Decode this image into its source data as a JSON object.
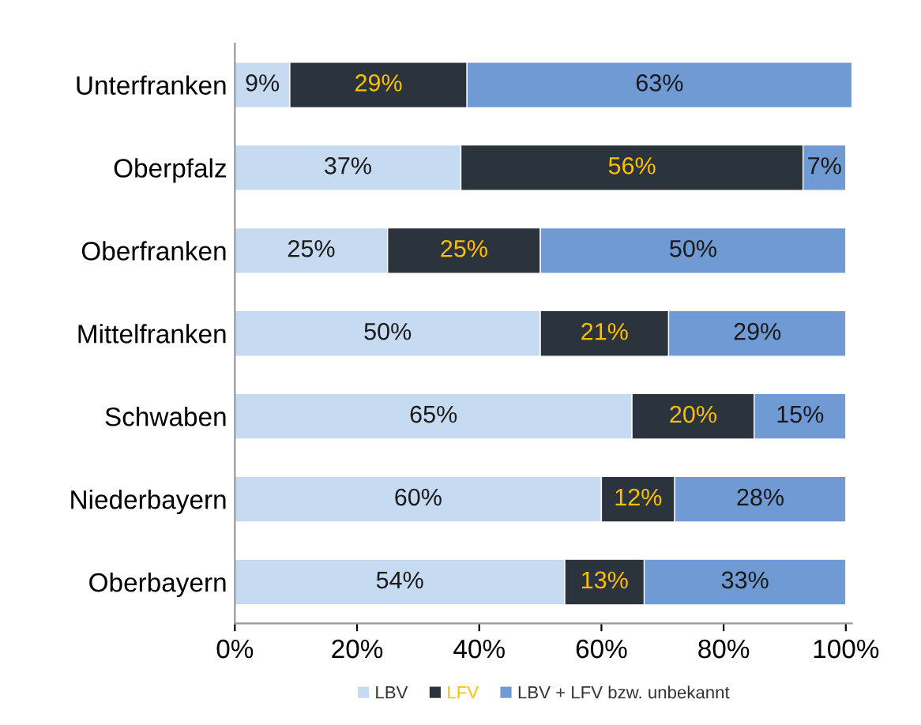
{
  "chart_data": {
    "type": "bar",
    "orientation": "horizontal",
    "stacked": true,
    "categories": [
      "Unterfranken",
      "Oberpfalz",
      "Oberfranken",
      "Mittelfranken",
      "Schwaben",
      "Niederbayern",
      "Oberbayern"
    ],
    "series": [
      {
        "name": "LBV",
        "color": "#c6dbf1",
        "values": [
          9,
          37,
          25,
          50,
          65,
          60,
          54
        ],
        "value_labels": [
          "9%",
          "37%",
          "25%",
          "50%",
          "65%",
          "60%",
          "54%"
        ]
      },
      {
        "name": "LFV",
        "color": "#2b333d",
        "values": [
          29,
          56,
          25,
          21,
          20,
          12,
          13
        ],
        "value_labels": [
          "29%",
          "56%",
          "25%",
          "21%",
          "20%",
          "12%",
          "13%"
        ]
      },
      {
        "name": "LBV + LFV bzw. unbekannt",
        "color": "#6f9ad3",
        "values": [
          63,
          7,
          50,
          29,
          15,
          28,
          33
        ],
        "value_labels": [
          "63%",
          "7%",
          "50%",
          "29%",
          "15%",
          "28%",
          "33%"
        ]
      }
    ],
    "xlim": [
      0,
      101
    ],
    "xticks": [
      {
        "value": 0,
        "label": "0%"
      },
      {
        "value": 20,
        "label": "20%"
      },
      {
        "value": 40,
        "label": "40%"
      },
      {
        "value": 60,
        "label": "60%"
      },
      {
        "value": 80,
        "label": "80%"
      },
      {
        "value": 100,
        "label": "100%"
      }
    ],
    "grid": false,
    "legend": "bottom"
  }
}
